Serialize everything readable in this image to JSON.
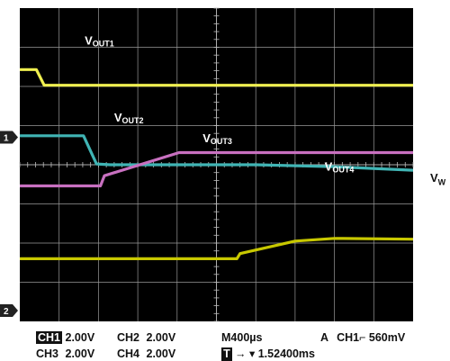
{
  "chart_data": {
    "type": "line",
    "grid": true,
    "grid_divisions": {
      "x": 10,
      "y": 8
    },
    "x_unit_per_div_us": 400,
    "ch_volts_per_div": 2.0,
    "series": [
      {
        "name": "OUT1",
        "channel": 1,
        "color": "#f0f050",
        "points": [
          [
            0,
            1.57
          ],
          [
            0.42,
            1.57
          ],
          [
            0.62,
            1.97
          ],
          [
            10,
            1.97
          ]
        ],
        "label_prefix": "V",
        "label_sub": "OUT1"
      },
      {
        "name": "OUT2",
        "channel": 2,
        "color": "#40b4b4",
        "points": [
          [
            0,
            3.26
          ],
          [
            1.62,
            3.26
          ],
          [
            1.95,
            3.98
          ],
          [
            2.3,
            4.0
          ],
          [
            6,
            4.0
          ],
          [
            8,
            4.05
          ],
          [
            10,
            4.14
          ]
        ],
        "label_prefix": "V",
        "label_sub": "OUT2"
      },
      {
        "name": "OUT3",
        "channel": 3,
        "color": "#c870c0",
        "points": [
          [
            0,
            4.54
          ],
          [
            2.05,
            4.54
          ],
          [
            2.15,
            4.28
          ],
          [
            4.05,
            3.69
          ],
          [
            10,
            3.69
          ]
        ],
        "label_prefix": "V",
        "label_sub": "OUT3"
      },
      {
        "name": "OUT4",
        "channel": 4,
        "color": "#c8c800",
        "points": [
          [
            0,
            6.4
          ],
          [
            5.52,
            6.4
          ],
          [
            5.6,
            6.27
          ],
          [
            7.0,
            5.95
          ],
          [
            8.0,
            5.88
          ],
          [
            10,
            5.9
          ]
        ],
        "label_prefix": "V",
        "label_sub": "OUT4"
      }
    ],
    "markers": [
      {
        "label": "1"
      },
      {
        "label": "2"
      }
    ],
    "side_label": "V",
    "side_label_sub": "W"
  },
  "status": {
    "ch1": "CH1",
    "ch1_scale": "2.00V",
    "ch2": "CH2",
    "ch2_scale": "2.00V",
    "ch3": "CH3",
    "ch3_scale": "2.00V",
    "ch4": "CH4",
    "ch4_scale": "2.00V",
    "timebase": "M400µs",
    "trigger_mode": "A",
    "trigger_channel": "CH1",
    "trigger_edge": "⌐",
    "trigger_level": "560mV",
    "t_box": "T",
    "t_arrow": "→ ▾",
    "t_position": "1.52400ms"
  }
}
